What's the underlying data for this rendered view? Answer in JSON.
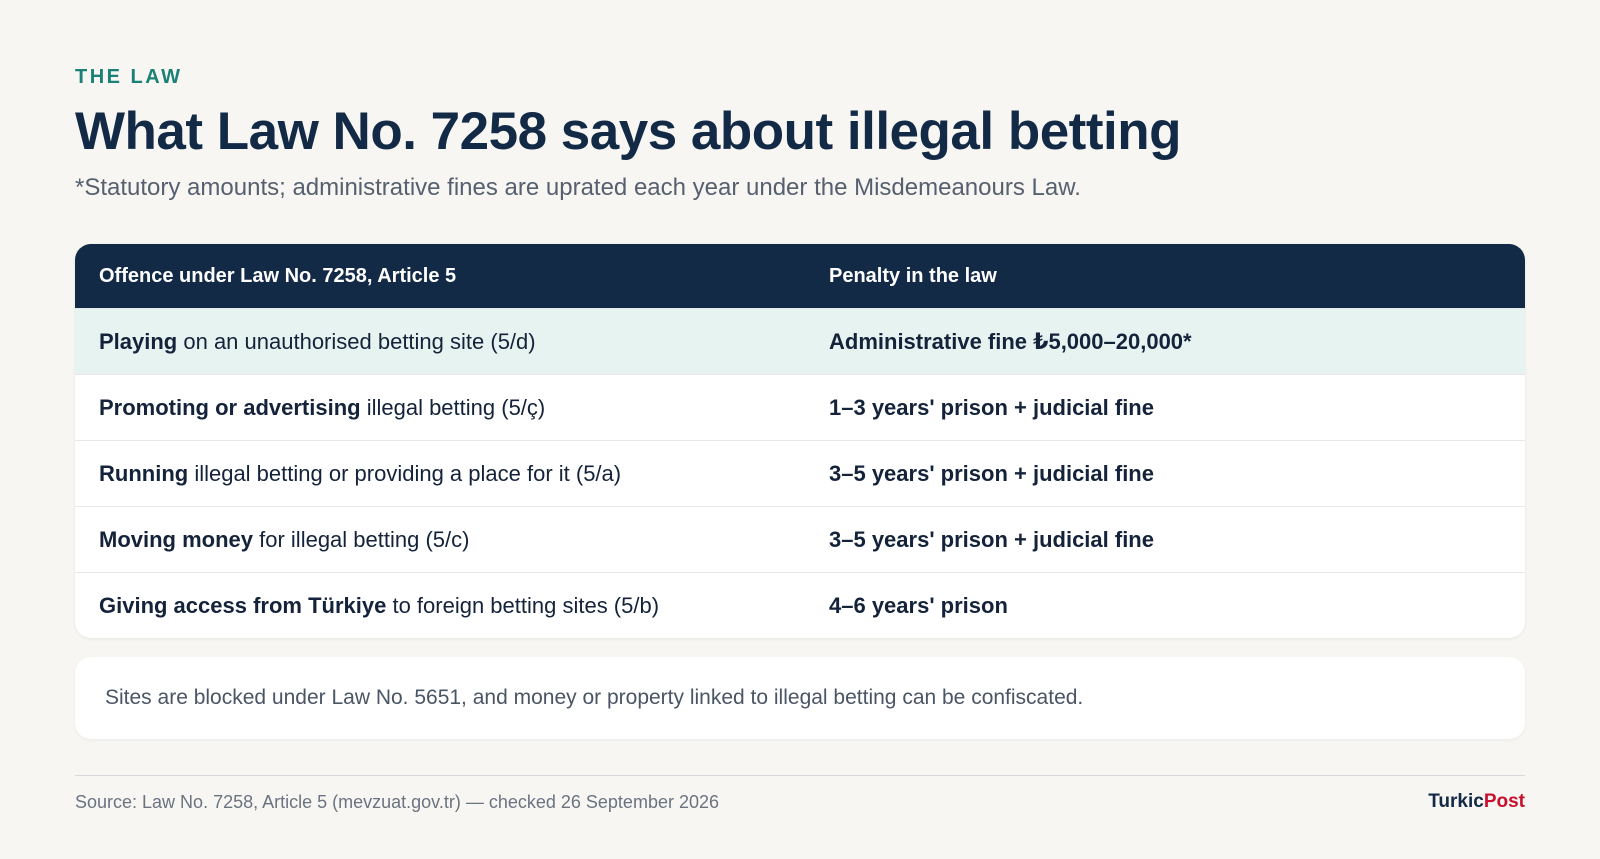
{
  "header": {
    "kicker": "THE LAW",
    "title": "What Law No. 7258 says about illegal betting",
    "subtitle": "*Statutory amounts; administrative fines are uprated each year under the Misdemeanours Law."
  },
  "table": {
    "columns": [
      "Offence under Law No. 7258, Article 5",
      "Penalty in the law"
    ],
    "rows": [
      {
        "offence_bold": "Playing",
        "offence_rest": " on an unauthorised betting site (5/d)",
        "penalty": "Administrative fine ₺5,000–20,000*",
        "highlighted": true
      },
      {
        "offence_bold": "Promoting or advertising",
        "offence_rest": " illegal betting (5/ç)",
        "penalty": "1–3 years' prison + judicial fine",
        "highlighted": false
      },
      {
        "offence_bold": "Running",
        "offence_rest": " illegal betting or providing a place for it (5/a)",
        "penalty": "3–5 years' prison + judicial fine",
        "highlighted": false
      },
      {
        "offence_bold": "Moving money",
        "offence_rest": " for illegal betting (5/c)",
        "penalty": "3–5 years' prison + judicial fine",
        "highlighted": false
      },
      {
        "offence_bold": "Giving access from Türkiye",
        "offence_rest": " to foreign betting sites (5/b)",
        "penalty": "4–6 years' prison",
        "highlighted": false
      }
    ]
  },
  "note": "Sites are blocked under Law No. 5651, and money or property linked to illegal betting can be confiscated.",
  "footer": {
    "source": "Source: Law No. 7258, Article 5 (mevzuat.gov.tr) — checked 26 September 2026",
    "brand_part1": "Turkic",
    "brand_part2": "Post"
  },
  "colors": {
    "accent": "#1b8177",
    "navy": "#132a47",
    "brand_red": "#c8102e",
    "highlight_row": "#e7f3f1"
  }
}
